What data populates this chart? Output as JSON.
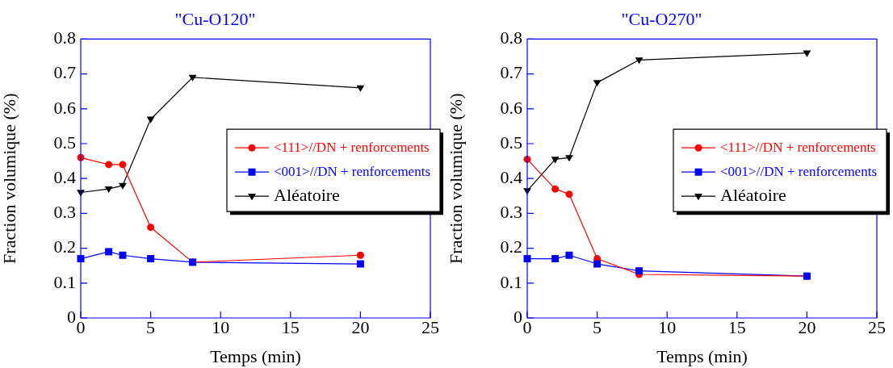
{
  "chart_data": [
    {
      "type": "line",
      "title": "\"Cu-O120\"",
      "xlabel": "Temps (min)",
      "ylabel": "Fraction volumique (%)",
      "xlim": [
        0,
        25
      ],
      "xticks": [
        0,
        5,
        10,
        15,
        20,
        25
      ],
      "ylim": [
        0,
        0.8
      ],
      "yticks": [
        0,
        0.1,
        0.2,
        0.3,
        0.4,
        0.5,
        0.6,
        0.7,
        0.8
      ],
      "grid": false,
      "legend": "right",
      "line_style": "solid",
      "series": [
        {
          "name": "<111>//DN + renforcements",
          "color": "#ff0000",
          "marker": "circle",
          "x": [
            0,
            2,
            3,
            5,
            8,
            20
          ],
          "values": [
            0.46,
            0.44,
            0.44,
            0.26,
            0.16,
            0.18
          ]
        },
        {
          "name": "<001>//DN + renforcements",
          "color": "#0000ff",
          "marker": "square",
          "x": [
            0,
            2,
            3,
            5,
            8,
            20
          ],
          "values": [
            0.17,
            0.19,
            0.18,
            0.17,
            0.16,
            0.155
          ]
        },
        {
          "name": "Aléatoire",
          "color": "#000000",
          "marker": "triangle",
          "x": [
            0,
            2,
            3,
            5,
            8,
            20
          ],
          "values": [
            0.36,
            0.37,
            0.38,
            0.57,
            0.69,
            0.66
          ]
        }
      ]
    },
    {
      "type": "line",
      "title": "\"Cu-O270\"",
      "xlabel": "Temps (min)",
      "ylabel": "Fraction volumique (%)",
      "xlim": [
        0,
        25
      ],
      "xticks": [
        0,
        5,
        10,
        15,
        20,
        25
      ],
      "ylim": [
        0,
        0.8
      ],
      "yticks": [
        0,
        0.1,
        0.2,
        0.3,
        0.4,
        0.5,
        0.6,
        0.7,
        0.8
      ],
      "grid": false,
      "legend": "right",
      "line_style": "solid",
      "series": [
        {
          "name": "<111>//DN + renforcements",
          "color": "#ff0000",
          "marker": "circle",
          "x": [
            0,
            2,
            3,
            5,
            8,
            20
          ],
          "values": [
            0.455,
            0.37,
            0.355,
            0.17,
            0.125,
            0.12
          ]
        },
        {
          "name": "<001>//DN + renforcements",
          "color": "#0000ff",
          "marker": "square",
          "x": [
            0,
            2,
            3,
            5,
            8,
            20
          ],
          "values": [
            0.17,
            0.17,
            0.18,
            0.155,
            0.135,
            0.12
          ]
        },
        {
          "name": "Aléatoire",
          "color": "#000000",
          "marker": "triangle",
          "x": [
            0,
            2,
            3,
            5,
            8,
            20
          ],
          "values": [
            0.365,
            0.455,
            0.46,
            0.675,
            0.74,
            0.76
          ]
        }
      ]
    }
  ]
}
